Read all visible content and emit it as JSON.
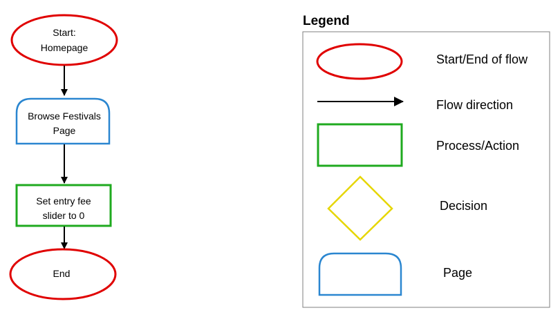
{
  "flow": {
    "start": {
      "line1": "Start:",
      "line2": "Homepage"
    },
    "browse": {
      "line1": "Browse Festivals",
      "line2": "Page"
    },
    "action": {
      "line1": "Set entry fee",
      "line2": "slider to 0"
    },
    "end": {
      "label": "End"
    }
  },
  "legend": {
    "title": "Legend",
    "items": [
      {
        "label": "Start/End of flow"
      },
      {
        "label": "Flow direction"
      },
      {
        "label": "Process/Action"
      },
      {
        "label": "Decision"
      },
      {
        "label": "Page"
      }
    ]
  },
  "colors": {
    "start_end": "#e00000",
    "process": "#1faa1f",
    "decision": "#e6d600",
    "page": "#2a86d0",
    "arrow": "#000000",
    "legend_border": "#7f7f7f"
  }
}
